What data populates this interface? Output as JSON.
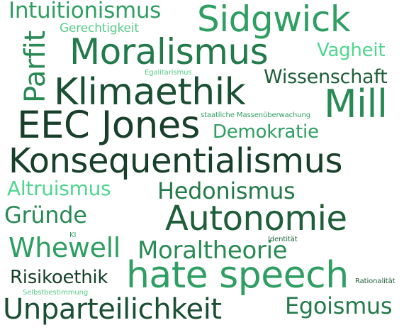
{
  "words": [
    {
      "text": "Intuitionismus",
      "color": "#2e9e62"
    },
    {
      "text": "Sidgwick",
      "color": "#2f9e63"
    },
    {
      "text": "Gerechtigkeit",
      "color": "#58cc8a"
    },
    {
      "text": "Parfit",
      "color": "#2a8a55"
    },
    {
      "text": "Moralismus",
      "color": "#237a4a"
    },
    {
      "text": "Vagheit",
      "color": "#4fd68e"
    },
    {
      "text": "Egalitarismus",
      "color": "#58cc8a"
    },
    {
      "text": "Wissenschaft",
      "color": "#1e5f3a"
    },
    {
      "text": "Klimaethik",
      "color": "#1a4f33"
    },
    {
      "text": "Mill",
      "color": "#2a8a55"
    },
    {
      "text": "EEC Jones",
      "color": "#173f2a"
    },
    {
      "text": "staatliche Massenüberwachung",
      "color": "#2e9e62"
    },
    {
      "text": "Demokratie",
      "color": "#2e9e62"
    },
    {
      "text": "Konsequentialismus",
      "color": "#173f2a"
    },
    {
      "text": "Altruismus",
      "color": "#4fd68e"
    },
    {
      "text": "Hedonismus",
      "color": "#237a4a"
    },
    {
      "text": "Gründe",
      "color": "#2a8a55"
    },
    {
      "text": "Autonomie",
      "color": "#1e5f3a"
    },
    {
      "text": "KI",
      "color": "#2e9e62"
    },
    {
      "text": "Identität",
      "color": "#1e5f3a"
    },
    {
      "text": "Whewell",
      "color": "#2e9e62"
    },
    {
      "text": "Moraltheorie",
      "color": "#2a8a55"
    },
    {
      "text": "Risikoethik",
      "color": "#173f2a"
    },
    {
      "text": "hate speech",
      "color": "#2e9e62"
    },
    {
      "text": "Rationalität",
      "color": "#1e5f3a"
    },
    {
      "text": "Selbstbestimmung",
      "color": "#58cc8a"
    },
    {
      "text": "Unparteilichkeit",
      "color": "#1a4f33"
    },
    {
      "text": "Egoismus",
      "color": "#237a4a"
    }
  ]
}
